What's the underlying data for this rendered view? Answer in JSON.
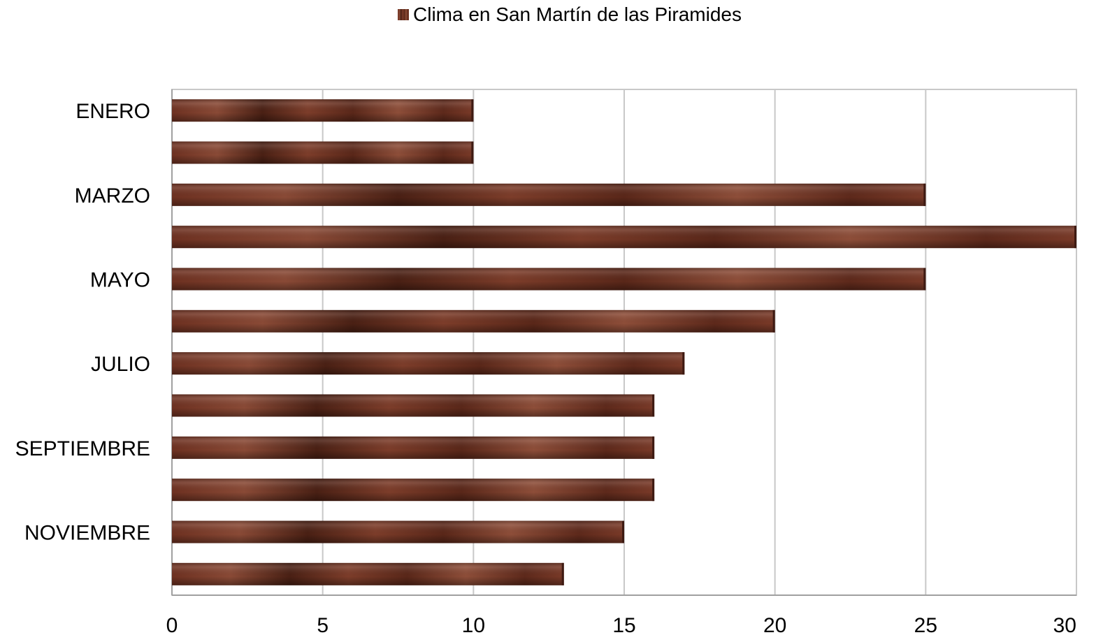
{
  "chart_data": {
    "type": "bar",
    "orientation": "horizontal",
    "categories": [
      "ENERO",
      "",
      "MARZO",
      "",
      "MAYO",
      "",
      "JULIO",
      "",
      "SEPTIEMBRE",
      "",
      "NOVIEMBRE",
      ""
    ],
    "series": [
      {
        "name": "Clima en San Martín de las Piramides",
        "values": [
          10,
          10,
          25,
          30,
          25,
          20,
          17,
          16,
          16,
          16,
          15,
          13
        ]
      }
    ],
    "xlim": [
      0,
      30
    ],
    "x_ticks": [
      "0",
      "5",
      "10",
      "15",
      "20",
      "25",
      "30"
    ],
    "grid": true,
    "legend_position": "top",
    "colors": {
      "bar": "#6b2f22",
      "bar_light": "#8a4a36",
      "bar_dark": "#3e1a12",
      "grid": "#c8c8c8"
    }
  }
}
